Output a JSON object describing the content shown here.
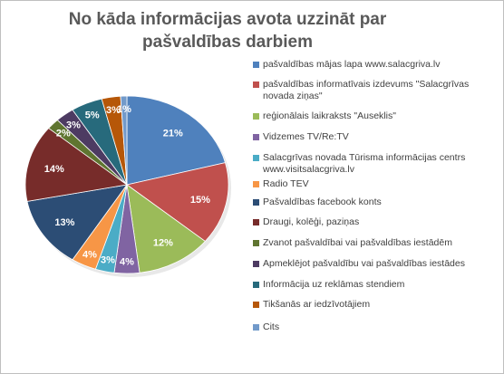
{
  "chart_data": {
    "type": "pie",
    "title": "No kāda informācijas avota uzzināt par pašvaldības darbiem",
    "legend_position": "right",
    "slices": [
      {
        "label": "pašvaldības mājas lapa www.salacgriva.lv",
        "value": 21,
        "value_label": "21%",
        "color": "#4f81bd"
      },
      {
        "label": "pašvaldības informatīvais izdevums \"Salacgrīvas novada ziņas\"",
        "value": 15,
        "value_label": "15%",
        "color": "#c0504d"
      },
      {
        "label": "reģionālais laikraksts \"Auseklis\"",
        "value": 12,
        "value_label": "12%",
        "color": "#9bbb59"
      },
      {
        "label": "Vidzemes TV/Re:TV",
        "value": 4,
        "value_label": "4%",
        "color": "#8064a2"
      },
      {
        "label": "Salacgrīvas novada Tūrisma informācijas centrs www.visitsalacgriva.lv",
        "value": 3,
        "value_label": "3%",
        "color": "#4bacc6"
      },
      {
        "label": "Radio TEV",
        "value": 4,
        "value_label": "4%",
        "color": "#f79646"
      },
      {
        "label": "Pašvaldības facebook konts",
        "value": 13,
        "value_label": "13%",
        "color": "#2c4d75"
      },
      {
        "label": "Draugi, kolēģi, paziņas",
        "value": 14,
        "value_label": "14%",
        "color": "#772c2a"
      },
      {
        "label": "Zvanot pašvaldībai vai pašvaldības iestādēm",
        "value": 2,
        "value_label": "2%",
        "color": "#5f7530"
      },
      {
        "label": "Apmeklējot pašvaldību vai pašvaldības iestādes",
        "value": 3,
        "value_label": "3%",
        "color": "#4d3b62"
      },
      {
        "label": "Informācija uz reklāmas stendiem",
        "value": 5,
        "value_label": "5%",
        "color": "#276a7c"
      },
      {
        "label": "Tikšanās ar iedzīvotājiem",
        "value": 3,
        "value_label": "3%",
        "color": "#b65708"
      },
      {
        "label": "Cits",
        "value": 1,
        "value_label": "1%",
        "color": "#729aca"
      }
    ]
  }
}
